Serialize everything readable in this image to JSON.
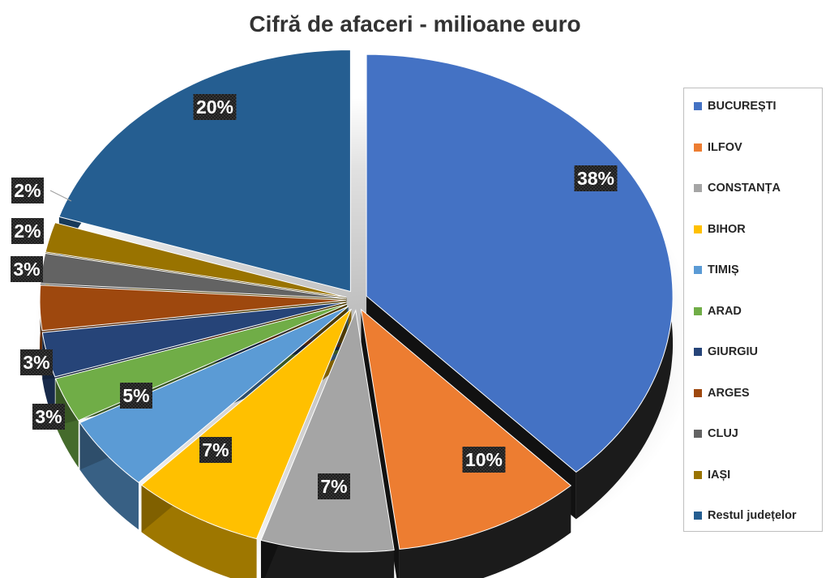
{
  "chart_data": {
    "type": "pie",
    "title": "Cifră de afaceri - milioane euro",
    "legend_position": "right",
    "slices": [
      {
        "name": "BUCUREȘTI",
        "value": 38,
        "label": "38%",
        "color": "#4472C4"
      },
      {
        "name": "ILFOV",
        "value": 10,
        "label": "10%",
        "color": "#ED7D31"
      },
      {
        "name": "CONSTANȚA",
        "value": 7,
        "label": "7%",
        "color": "#A5A5A5"
      },
      {
        "name": "BIHOR",
        "value": 7,
        "label": "7%",
        "color": "#FFC000"
      },
      {
        "name": "TIMIȘ",
        "value": 5,
        "label": "5%",
        "color": "#5B9BD5"
      },
      {
        "name": "ARAD",
        "value": 3,
        "label": "3%",
        "color": "#70AD47"
      },
      {
        "name": "GIURGIU",
        "value": 3,
        "label": "3%",
        "color": "#264478"
      },
      {
        "name": "ARGES",
        "value": 3,
        "label": "3%",
        "color": "#9E480E"
      },
      {
        "name": "CLUJ",
        "value": 2,
        "label": "2%",
        "color": "#636363"
      },
      {
        "name": "IAȘI",
        "value": 2,
        "label": "2%",
        "color": "#997300"
      },
      {
        "name": "Restul județelor",
        "value": 20,
        "label": "20%",
        "color": "#255E91"
      }
    ]
  }
}
